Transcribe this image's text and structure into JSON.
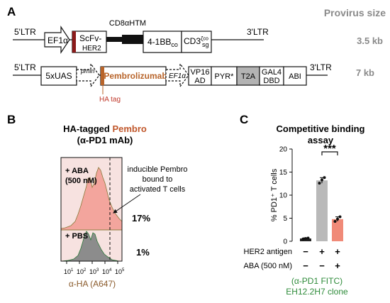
{
  "panels": {
    "a": "A",
    "b": "B",
    "c": "C"
  },
  "provirus_header": "Provirus size",
  "construct1": {
    "ltr_left": "5'LTR",
    "ltr_right": "3'LTR",
    "promoter": "EF1α",
    "scfv_line1": "ScFv-",
    "scfv_line2": "HER2",
    "hinge": "CD8αHTM",
    "costim_main": "4-1BB",
    "costim_sub": "co",
    "cd3_main": "CD3",
    "cd3_sup": "ζ",
    "cd3_sub": "co",
    "cd3_tail": "sg",
    "size": "3.5 kb"
  },
  "construct2": {
    "ltr_left": "5'LTR",
    "ltr_right": "3'LTR",
    "uas": "5xUAS",
    "pmin": "pmin",
    "pembro": "Pembrolizumab",
    "ha_tag": "HA tag",
    "promoter": "EF1α",
    "vp16_line1": "VP16",
    "vp16_line2": "AD",
    "pyr": "PYR*",
    "t2a": "T2A",
    "gal4_line1": "GAL4",
    "gal4_line2": "DBD",
    "abi": "ABI",
    "size": "7 kb"
  },
  "panel_b": {
    "title_prefix": "HA-tagged ",
    "title_highlight": "Pembro",
    "title_line2": "(α-PD1 mAb)",
    "top_condition_line1": "+ ABA",
    "top_condition_line2": "(500 nM)",
    "bottom_condition": "+ PBS",
    "annotation_lines": [
      "inducible Pembro",
      "bound to",
      "activated T cells"
    ],
    "top_percent": "17%",
    "bottom_percent": "1%",
    "xlabel": "α-HA (A647)",
    "x_ticks": [
      {
        "base": "10",
        "exp": "1"
      },
      {
        "base": "10",
        "exp": "2"
      },
      {
        "base": "10",
        "exp": "3"
      },
      {
        "base": "10",
        "exp": "4"
      },
      {
        "base": "10",
        "exp": "5"
      }
    ]
  },
  "panel_c": {
    "title_line1": "Competitive binding",
    "title_line2": "assay",
    "ylabel": "% PD1⁺ T cells",
    "y_ticks": [
      "0",
      "5",
      "10",
      "15",
      "20"
    ],
    "significance": "***",
    "row1_label": "HER2 antigen",
    "row1_signs": [
      "−",
      "+",
      "+"
    ],
    "row2_label": "ABA (500 nM)",
    "row2_signs": [
      "−",
      "−",
      "+"
    ],
    "footer_line1": "(α-PD1 FITC)",
    "footer_line2": "EH12.2H7 clone",
    "colors": {
      "bar1": "#222222",
      "bar2": "#b9b9b9",
      "bar3": "#f08a78",
      "footer": "#2e8b3a"
    }
  },
  "chart_data": {
    "type": "bar",
    "categories": [
      "− / −",
      "+ / −",
      "+ / +"
    ],
    "values": [
      0.6,
      13.2,
      4.8
    ],
    "errors": [
      0.15,
      0.6,
      0.5
    ],
    "points": [
      [
        0.5,
        0.6,
        0.7
      ],
      [
        12.6,
        13.3,
        13.8
      ],
      [
        4.3,
        4.8,
        5.3
      ]
    ],
    "title": "Competitive binding assay",
    "xlabel": "",
    "ylabel": "% PD1⁺ T cells",
    "ylim": [
      0,
      20
    ],
    "grid": false
  }
}
